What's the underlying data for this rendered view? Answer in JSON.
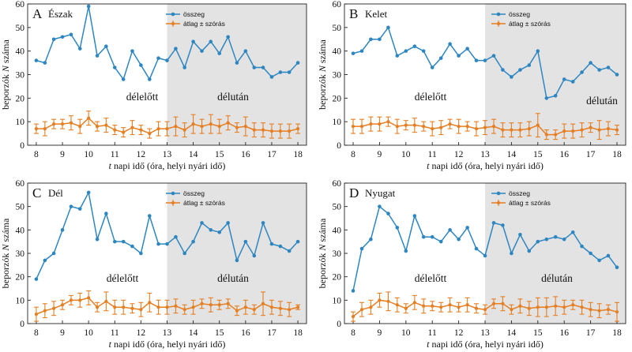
{
  "chart_data": [
    {
      "type": "line",
      "panel_letter": "A",
      "title": "Észak",
      "xlabel_t": "t",
      "xlabel_rest": " napi idő (óra, helyi nyári idő)",
      "ylabel_pre": "beporzók ",
      "ylabel_n": "N",
      "ylabel_post": " száma",
      "xlim": [
        7.67,
        18.33
      ],
      "ylim": [
        0,
        60
      ],
      "xticks": [
        "8",
        "9",
        "10",
        "11",
        "12",
        "13",
        "14",
        "15",
        "16",
        "17",
        "18"
      ],
      "yticks": [
        "0",
        "10",
        "20",
        "30",
        "40",
        "50",
        "60"
      ],
      "shaded_from": 13,
      "morning_label": "délelőtt",
      "afternoon_label": "délután",
      "legend": [
        "összeg",
        "átlag ± szórás"
      ],
      "colors": {
        "total": "#2e86c1",
        "mean": "#e67e22"
      },
      "x": [
        8,
        8.33,
        8.67,
        9,
        9.33,
        9.67,
        10,
        10.33,
        10.67,
        11,
        11.33,
        11.67,
        12,
        12.33,
        12.67,
        13,
        13.33,
        13.67,
        14,
        14.33,
        14.67,
        15,
        15.33,
        15.67,
        16,
        16.33,
        16.67,
        17,
        17.33,
        17.67,
        18
      ],
      "series": [
        {
          "name": "összeg",
          "values": [
            36,
            35,
            45,
            46,
            47,
            41,
            59,
            38,
            42,
            33,
            28,
            40,
            34,
            28,
            37,
            36,
            41,
            33,
            44,
            40,
            44,
            39,
            46,
            35,
            40,
            33,
            33,
            29,
            31,
            31,
            35
          ]
        },
        {
          "name": "átlag ± szórás",
          "values": [
            7,
            7,
            9,
            9,
            9.5,
            8,
            11.5,
            8,
            8.5,
            6.5,
            5.5,
            7.5,
            6.5,
            5,
            7,
            7,
            8,
            6.5,
            9,
            8,
            9,
            8,
            9.5,
            7.5,
            8,
            6.5,
            6.5,
            6,
            6,
            6,
            7
          ],
          "errors": [
            2,
            3,
            2,
            2,
            3,
            3,
            3,
            2,
            3,
            2,
            2,
            3,
            2,
            2,
            3,
            3,
            4,
            3,
            4,
            3,
            4,
            3,
            3,
            2,
            4,
            3,
            3,
            3,
            3,
            3,
            2
          ]
        }
      ]
    },
    {
      "type": "line",
      "panel_letter": "B",
      "title": "Kelet",
      "xlabel_t": "t",
      "xlabel_rest": " napi idő (óra, helyi nyári idő)",
      "ylabel_pre": "beporzók ",
      "ylabel_n": "N",
      "ylabel_post": " száma",
      "xlim": [
        7.67,
        18.33
      ],
      "ylim": [
        0,
        60
      ],
      "xticks": [
        "8",
        "9",
        "10",
        "11",
        "12",
        "13",
        "14",
        "15",
        "16",
        "17",
        "18"
      ],
      "yticks": [
        "0",
        "10",
        "20",
        "30",
        "40",
        "50",
        "60"
      ],
      "shaded_from": 13,
      "morning_label": "délelőtt",
      "afternoon_label": "délután",
      "legend": [
        "összeg",
        "átlag ± szórás"
      ],
      "colors": {
        "total": "#2e86c1",
        "mean": "#e67e22"
      },
      "x": [
        8,
        8.33,
        8.67,
        9,
        9.33,
        9.67,
        10,
        10.33,
        10.67,
        11,
        11.33,
        11.67,
        12,
        12.33,
        12.67,
        13,
        13.33,
        13.67,
        14,
        14.33,
        14.67,
        15,
        15.33,
        15.67,
        16,
        16.33,
        16.67,
        17,
        17.33,
        17.67,
        18
      ],
      "series": [
        {
          "name": "összeg",
          "values": [
            39,
            40,
            45,
            45,
            50,
            38,
            40,
            42,
            40,
            33,
            37,
            43,
            38,
            41,
            36,
            36,
            38,
            32,
            29,
            32,
            34,
            40,
            20,
            21,
            28,
            27,
            31,
            35,
            32,
            33,
            30
          ]
        },
        {
          "name": "átlag ± szórás",
          "values": [
            8,
            8,
            9,
            9,
            10,
            8,
            8.5,
            8.5,
            8,
            7,
            7.5,
            9,
            8,
            8,
            7,
            7.5,
            8,
            6.5,
            6.5,
            6.5,
            7,
            8.5,
            4.5,
            4.5,
            6,
            6,
            6.5,
            7.5,
            6.5,
            7,
            6.5
          ],
          "errors": [
            3,
            3,
            3,
            3,
            2,
            3,
            2,
            3,
            2,
            3,
            3,
            2,
            3,
            2,
            3,
            3,
            3,
            3,
            3,
            3,
            3,
            5,
            2,
            2,
            3,
            3,
            3,
            2,
            4,
            3,
            2
          ]
        }
      ]
    },
    {
      "type": "line",
      "panel_letter": "C",
      "title": "Dél",
      "xlabel_t": "t",
      "xlabel_rest": " napi idő (óra, helyi nyári idő)",
      "ylabel_pre": "beporzók ",
      "ylabel_n": "N",
      "ylabel_post": " száma",
      "xlim": [
        7.67,
        18.33
      ],
      "ylim": [
        0,
        60
      ],
      "xticks": [
        "8",
        "9",
        "10",
        "11",
        "12",
        "13",
        "14",
        "15",
        "16",
        "17",
        "18"
      ],
      "yticks": [
        "0",
        "10",
        "20",
        "30",
        "40",
        "50",
        "60"
      ],
      "shaded_from": 13,
      "morning_label": "délelőtt",
      "afternoon_label": "délután",
      "legend": [
        "összeg",
        "átlag ± szórás"
      ],
      "colors": {
        "total": "#2e86c1",
        "mean": "#e67e22"
      },
      "x": [
        8,
        8.33,
        8.67,
        9,
        9.33,
        9.67,
        10,
        10.33,
        10.67,
        11,
        11.33,
        11.67,
        12,
        12.33,
        12.67,
        13,
        13.33,
        13.67,
        14,
        14.33,
        14.67,
        15,
        15.33,
        15.67,
        16,
        16.33,
        16.67,
        17,
        17.33,
        17.67,
        18
      ],
      "series": [
        {
          "name": "összeg",
          "values": [
            19,
            27,
            30,
            40,
            50,
            49,
            56,
            36,
            47,
            35,
            35,
            33,
            30,
            46,
            34,
            34,
            37,
            30,
            35,
            43,
            40,
            39,
            43,
            27,
            35,
            29,
            43,
            34,
            33,
            31,
            35
          ]
        },
        {
          "name": "átlag ± szórás",
          "values": [
            4,
            5.5,
            6.5,
            8,
            10,
            10,
            11,
            7,
            9.5,
            7,
            7,
            6.5,
            6,
            9,
            7,
            7,
            7.5,
            6,
            7,
            8.5,
            8,
            8,
            8.5,
            5.5,
            7,
            6,
            8.5,
            7,
            6.5,
            6,
            7
          ],
          "errors": [
            3,
            3,
            3,
            2,
            2,
            3,
            3,
            2,
            4,
            3,
            3,
            2,
            3,
            4,
            3,
            3,
            3,
            2,
            3,
            2,
            3,
            2,
            2,
            2,
            3,
            2,
            5,
            3,
            3,
            3,
            1
          ]
        }
      ]
    },
    {
      "type": "line",
      "panel_letter": "D",
      "title": "Nyugat",
      "xlabel_t": "t",
      "xlabel_rest": " napi idő (óra, helyi nyári idő)",
      "ylabel_pre": "beporzók ",
      "ylabel_n": "N",
      "ylabel_post": " száma",
      "xlim": [
        7.67,
        18.33
      ],
      "ylim": [
        0,
        60
      ],
      "xticks": [
        "8",
        "9",
        "10",
        "11",
        "12",
        "13",
        "14",
        "15",
        "16",
        "17",
        "18"
      ],
      "yticks": [
        "0",
        "10",
        "20",
        "30",
        "40",
        "50",
        "60"
      ],
      "shaded_from": 13,
      "morning_label": "délelőtt",
      "afternoon_label": "délután",
      "legend": [
        "összeg",
        "átlag ± szórás"
      ],
      "colors": {
        "total": "#2e86c1",
        "mean": "#e67e22"
      },
      "x": [
        8,
        8.33,
        8.67,
        9,
        9.33,
        9.67,
        10,
        10.33,
        10.67,
        11,
        11.33,
        11.67,
        12,
        12.33,
        12.67,
        13,
        13.33,
        13.67,
        14,
        14.33,
        14.67,
        15,
        15.33,
        15.67,
        16,
        16.33,
        16.67,
        17,
        17.33,
        17.67,
        18
      ],
      "series": [
        {
          "name": "összeg",
          "values": [
            14,
            32,
            36,
            50,
            47,
            41,
            31,
            46,
            37,
            37,
            35,
            40,
            36,
            41,
            32,
            29,
            43,
            42,
            30,
            38,
            31,
            35,
            36,
            37,
            36,
            39,
            33,
            30,
            27,
            29,
            24
          ]
        },
        {
          "name": "átlag ± szórás",
          "values": [
            3,
            6,
            7,
            10,
            9.5,
            8,
            6.5,
            9,
            7.5,
            7.5,
            7,
            8,
            7,
            8,
            6.5,
            6,
            8.5,
            8.5,
            6,
            7.5,
            6.5,
            7,
            7,
            7.5,
            7,
            8,
            7,
            6,
            5.5,
            6,
            5
          ],
          "errors": [
            2,
            3,
            3,
            3,
            4,
            3,
            2,
            3,
            3,
            2,
            2,
            3,
            2,
            3,
            2,
            2,
            2,
            3,
            2,
            3,
            3,
            4,
            4,
            4,
            3,
            2,
            3,
            3,
            3,
            2,
            4
          ]
        }
      ]
    }
  ]
}
